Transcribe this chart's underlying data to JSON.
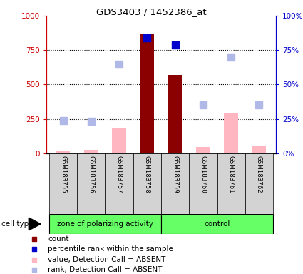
{
  "title": "GDS3403 / 1452386_at",
  "samples": [
    "GSM183755",
    "GSM183756",
    "GSM183757",
    "GSM183758",
    "GSM183759",
    "GSM183760",
    "GSM183761",
    "GSM183762"
  ],
  "groups": {
    "zone of polarizing activity": [
      0,
      1,
      2,
      3
    ],
    "control": [
      4,
      5,
      6,
      7
    ]
  },
  "count_values": [
    null,
    null,
    null,
    870,
    570,
    null,
    null,
    null
  ],
  "count_color": "#8B0000",
  "absent_bar_values": [
    18,
    28,
    185,
    null,
    null,
    48,
    290,
    58
  ],
  "absent_bar_color": "#FFB6C1",
  "rank_absent_values": [
    240,
    235,
    650,
    null,
    null,
    350,
    700,
    350
  ],
  "rank_absent_color": "#B0B8E8",
  "percentile_rank_values": [
    null,
    null,
    null,
    840,
    790,
    null,
    null,
    null
  ],
  "percentile_rank_color": "#0000CC",
  "ylim_left": [
    0,
    1000
  ],
  "ylim_right": [
    0,
    100
  ],
  "yticks_left": [
    0,
    250,
    500,
    750,
    1000
  ],
  "ytick_labels_left": [
    "0",
    "250",
    "500",
    "750",
    "1000"
  ],
  "yticks_right": [
    0,
    25,
    50,
    75,
    100
  ],
  "ytick_labels_right": [
    "0%",
    "25%",
    "50%",
    "75%",
    "100%"
  ],
  "left_axis_color": "#CC0000",
  "right_axis_color": "#0000CC",
  "group_color": "#66FF66",
  "bg_color": "#D3D3D3",
  "plot_bg": "#FFFFFF",
  "bar_width": 0.5,
  "scatter_size": 50,
  "legend_items": [
    {
      "color": "#8B0000",
      "label": "count"
    },
    {
      "color": "#0000CC",
      "label": "percentile rank within the sample"
    },
    {
      "color": "#FFB6C1",
      "label": "value, Detection Call = ABSENT"
    },
    {
      "color": "#B0B8E8",
      "label": "rank, Detection Call = ABSENT"
    }
  ]
}
